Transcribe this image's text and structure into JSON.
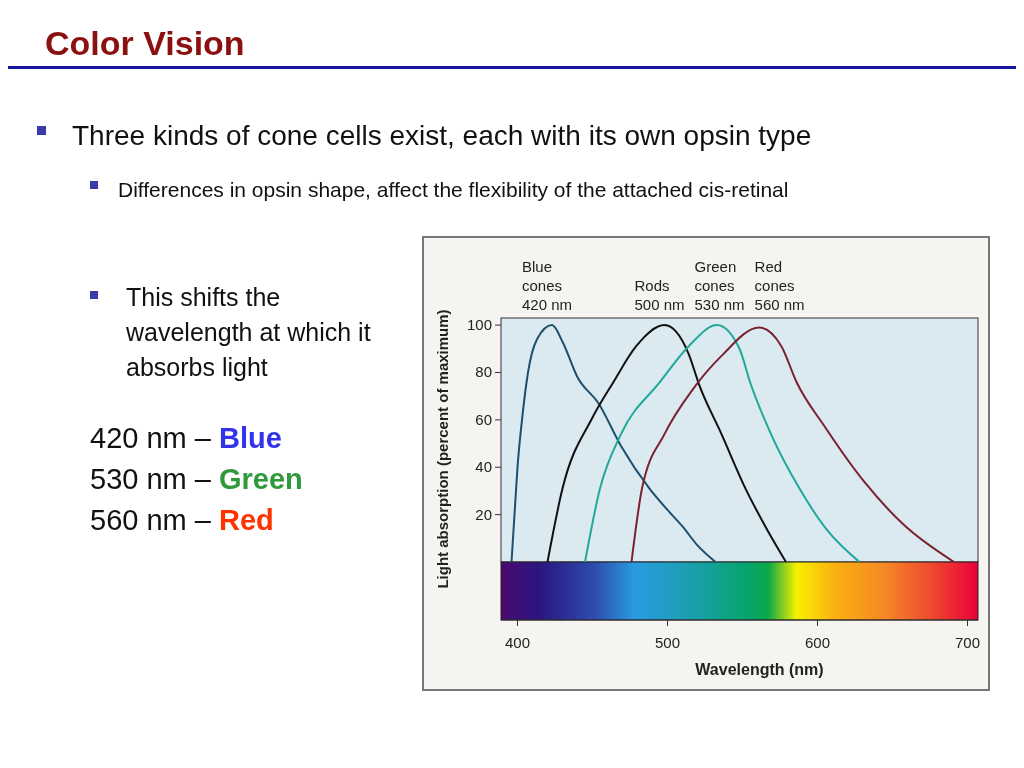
{
  "chart_data": {
    "type": "line",
    "title": "Color Vision",
    "annotations": [
      "Three kinds of cone cells exist, each with its own opsin type",
      "Differences in opsin shape, affect the flexibility of the attached cis-retinal",
      "This shifts the wavelength at which it absorbs light",
      "420 nm – Blue",
      "530 nm – Green",
      "560 nm – Red"
    ],
    "xlabel": "Wavelength (nm)",
    "ylabel": "Light absorption (percent of maximum)",
    "xlim": [
      389,
      707
    ],
    "xticks": [
      400,
      500,
      600,
      700
    ],
    "ylim": [
      0,
      103
    ],
    "yticks": [
      20,
      40,
      60,
      80,
      100
    ],
    "grid": false,
    "marker": "none",
    "line_style": "solid",
    "series": [
      {
        "name": "Blue cones 420 nm",
        "color": "#1d4f6e",
        "x": [
          396,
          398,
          400,
          403,
          407,
          413,
          423,
          430,
          440,
          454,
          469,
          488,
          500,
          510,
          520,
          532
        ],
        "values": [
          0,
          20,
          40,
          60,
          80,
          94,
          100,
          93,
          78,
          67,
          49,
          31,
          22,
          15,
          7,
          0
        ]
      },
      {
        "name": "Rods 500 nm",
        "color": "#111111",
        "x": [
          420,
          430,
          450,
          464,
          479,
          498,
          514,
          521,
          536,
          552,
          567,
          579
        ],
        "values": [
          0,
          31,
          61,
          76,
          91,
          100,
          88,
          75,
          54,
          31,
          13,
          0
        ]
      },
      {
        "name": "Green cones 530 nm",
        "color": "#1fa99a",
        "x": [
          445,
          455,
          469,
          495,
          514,
          533,
          548,
          555,
          569,
          588,
          607,
          628
        ],
        "values": [
          0,
          31,
          54,
          76,
          91,
          100,
          90,
          76,
          54,
          31,
          13,
          0
        ]
      },
      {
        "name": "Red cones 560 nm",
        "color": "#7a2230",
        "x": [
          476,
          483,
          498,
          517,
          536,
          561,
          576,
          586,
          605,
          631,
          657,
          691
        ],
        "values": [
          0,
          31,
          54,
          73,
          87,
          99,
          91,
          76,
          57,
          34,
          16,
          0
        ]
      }
    ]
  }
}
